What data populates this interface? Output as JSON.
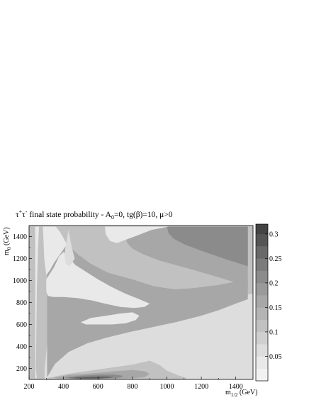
{
  "chart_data": {
    "type": "heatmap",
    "title": {
      "t1": "τ",
      "s1": "+",
      "t2": "τ",
      "s2": "-",
      "t3": " final state probability -  A",
      "s3": "0",
      "t4": "=0, tg(β)=10, μ>0"
    },
    "xlabel": {
      "main": "m",
      "sub": "1/2",
      "unit": " (GeV)"
    },
    "ylabel": {
      "main": "m",
      "sub": "0",
      "unit": "  (GeV)"
    },
    "xlim": [
      200,
      1500
    ],
    "ylim": [
      100,
      1500
    ],
    "x_ticks": [
      200,
      400,
      600,
      800,
      1000,
      1200,
      1400
    ],
    "y_ticks": [
      200,
      400,
      600,
      800,
      1000,
      1200,
      1400
    ],
    "colorbar": {
      "range": [
        0,
        0.32
      ],
      "levels": [
        0,
        0.025,
        0.05,
        0.075,
        0.1,
        0.125,
        0.15,
        0.175,
        0.2,
        0.225,
        0.25,
        0.275,
        0.3,
        0.32
      ],
      "tick_values": [
        0.05,
        0.1,
        0.15,
        0.2,
        0.25,
        0.3
      ],
      "tick_labels": [
        "0.05",
        "0.1",
        "0.15",
        "0.2",
        "0.25",
        "0.3"
      ],
      "colors": [
        "#f2f2f2",
        "#e9e9e9",
        "#dddddd",
        "#cfcfcf",
        "#c1c1c1",
        "#b4b4b4",
        "#a7a7a7",
        "#9a9a9a",
        "#8b8b8b",
        "#7b7b7b",
        "#696969",
        "#555555",
        "#444444"
      ]
    },
    "regions": [
      {
        "level": 0.11,
        "points": [
          [
            200,
            100
          ],
          [
            1500,
            100
          ],
          [
            1500,
            1500
          ],
          [
            200,
            1500
          ]
        ]
      },
      {
        "level": 0.06,
        "points": [
          [
            290,
            100
          ],
          [
            1500,
            100
          ],
          [
            1500,
            880
          ],
          [
            1000,
            770
          ],
          [
            800,
            700
          ],
          [
            620,
            620
          ],
          [
            480,
            560
          ],
          [
            390,
            520
          ],
          [
            340,
            490
          ],
          [
            305,
            420
          ],
          [
            290,
            200
          ]
        ]
      },
      {
        "level": 0.16,
        "points": [
          [
            270,
            1490
          ],
          [
            1470,
            1490
          ],
          [
            1470,
            945
          ],
          [
            1300,
            1030
          ],
          [
            1100,
            1120
          ],
          [
            960,
            1180
          ],
          [
            860,
            1240
          ],
          [
            800,
            1290
          ],
          [
            770,
            1340
          ],
          [
            760,
            1390
          ],
          [
            780,
            1490
          ]
        ]
      },
      {
        "level": 0.21,
        "points": [
          [
            600,
            1490
          ],
          [
            1470,
            1490
          ],
          [
            1470,
            1130
          ],
          [
            1350,
            1190
          ],
          [
            1200,
            1270
          ],
          [
            1100,
            1330
          ],
          [
            1040,
            1380
          ],
          [
            1010,
            1430
          ],
          [
            1000,
            1490
          ]
        ]
      },
      {
        "level": 0.16,
        "points": [
          [
            305,
            120
          ],
          [
            350,
            240
          ],
          [
            430,
            350
          ],
          [
            540,
            430
          ],
          [
            650,
            480
          ],
          [
            780,
            530
          ],
          [
            900,
            570
          ],
          [
            1050,
            620
          ],
          [
            1200,
            680
          ],
          [
            1300,
            730
          ],
          [
            1400,
            790
          ],
          [
            1470,
            830
          ],
          [
            1470,
            1010
          ],
          [
            1300,
            960
          ],
          [
            1150,
            930
          ],
          [
            1050,
            920
          ],
          [
            1000,
            930
          ],
          [
            920,
            950
          ],
          [
            800,
            1010
          ],
          [
            660,
            1070
          ],
          [
            560,
            1150
          ],
          [
            490,
            1230
          ],
          [
            440,
            1300
          ],
          [
            410,
            1320
          ],
          [
            380,
            1260
          ],
          [
            340,
            1170
          ],
          [
            305,
            1130
          ]
        ]
      },
      {
        "level": 0.21,
        "points": [
          [
            330,
            1000
          ],
          [
            300,
            900
          ],
          [
            350,
            870
          ],
          [
            440,
            880
          ],
          [
            520,
            900
          ],
          [
            560,
            930
          ],
          [
            480,
            990
          ],
          [
            430,
            1060
          ],
          [
            400,
            1070
          ],
          [
            370,
            1040
          ]
        ]
      },
      {
        "level": 0.03,
        "points": [
          [
            235,
            1490
          ],
          [
            258,
            1490
          ],
          [
            252,
            1300
          ],
          [
            245,
            900
          ],
          [
            242,
            500
          ],
          [
            240,
            200
          ],
          [
            245,
            110
          ],
          [
            237,
            110
          ],
          [
            236,
            400
          ],
          [
            236,
            900
          ],
          [
            236,
            1300
          ]
        ]
      },
      {
        "level": 0.03,
        "points": [
          [
            280,
            1490
          ],
          [
            355,
            1490
          ],
          [
            380,
            1440
          ],
          [
            420,
            1330
          ],
          [
            385,
            1250
          ],
          [
            345,
            1160
          ],
          [
            320,
            1090
          ],
          [
            300,
            1050
          ],
          [
            288,
            1200
          ],
          [
            283,
            1400
          ]
        ]
      },
      {
        "level": 0.03,
        "points": [
          [
            300,
            1010
          ],
          [
            320,
            1060
          ],
          [
            345,
            1120
          ],
          [
            375,
            1220
          ],
          [
            400,
            1260
          ],
          [
            430,
            1210
          ],
          [
            470,
            1140
          ],
          [
            540,
            1070
          ],
          [
            600,
            1010
          ],
          [
            680,
            940
          ],
          [
            760,
            880
          ],
          [
            840,
            830
          ],
          [
            900,
            790
          ],
          [
            870,
            760
          ],
          [
            810,
            750
          ],
          [
            730,
            760
          ],
          [
            640,
            790
          ],
          [
            560,
            820
          ],
          [
            480,
            840
          ],
          [
            400,
            850
          ],
          [
            340,
            850
          ],
          [
            310,
            860
          ],
          [
            300,
            900
          ]
        ]
      },
      {
        "level": 0.03,
        "points": [
          [
            640,
            1490
          ],
          [
            1010,
            1490
          ],
          [
            910,
            1460
          ],
          [
            830,
            1410
          ],
          [
            760,
            1370
          ],
          [
            710,
            1340
          ],
          [
            670,
            1360
          ],
          [
            645,
            1420
          ]
        ]
      },
      {
        "level": 0.06,
        "points": [
          [
            405,
            1220
          ],
          [
            410,
            1290
          ],
          [
            420,
            1380
          ],
          [
            428,
            1460
          ],
          [
            436,
            1400
          ],
          [
            450,
            1290
          ],
          [
            465,
            1200
          ],
          [
            445,
            1150
          ],
          [
            430,
            1130
          ],
          [
            415,
            1150
          ]
        ]
      },
      {
        "level": 0.03,
        "points": [
          [
            530,
            600
          ],
          [
            600,
            600
          ],
          [
            680,
            600
          ],
          [
            760,
            610
          ],
          [
            820,
            640
          ],
          [
            840,
            680
          ],
          [
            800,
            710
          ],
          [
            730,
            700
          ],
          [
            650,
            680
          ],
          [
            560,
            660
          ],
          [
            500,
            620
          ]
        ]
      },
      {
        "level": 0.11,
        "points": [
          [
            300,
            110
          ],
          [
            420,
            150
          ],
          [
            600,
            190
          ],
          [
            800,
            235
          ],
          [
            900,
            270
          ],
          [
            960,
            230
          ],
          [
            1000,
            180
          ],
          [
            1060,
            140
          ],
          [
            1120,
            110
          ],
          [
            1050,
            100
          ],
          [
            300,
            100
          ]
        ]
      },
      {
        "level": 0.16,
        "points": [
          [
            340,
            115
          ],
          [
            430,
            140
          ],
          [
            600,
            160
          ],
          [
            700,
            175
          ],
          [
            800,
            185
          ],
          [
            870,
            175
          ],
          [
            900,
            150
          ],
          [
            870,
            120
          ],
          [
            800,
            110
          ],
          [
            600,
            103
          ],
          [
            400,
            103
          ]
        ]
      },
      {
        "level": 0.21,
        "points": [
          [
            400,
            118
          ],
          [
            500,
            135
          ],
          [
            600,
            143
          ],
          [
            690,
            145
          ],
          [
            740,
            135
          ],
          [
            740,
            120
          ],
          [
            700,
            112
          ],
          [
            600,
            106
          ],
          [
            480,
            106
          ]
        ]
      },
      {
        "level": 0.26,
        "points": [
          [
            420,
            113
          ],
          [
            520,
            123
          ],
          [
            600,
            128
          ],
          [
            660,
            128
          ],
          [
            690,
            120
          ],
          [
            660,
            113
          ],
          [
            580,
            109
          ],
          [
            480,
            108
          ]
        ]
      },
      {
        "level": 0.285,
        "points": [
          [
            470,
            111
          ],
          [
            540,
            116
          ],
          [
            610,
            117
          ],
          [
            640,
            113
          ],
          [
            600,
            110
          ],
          [
            530,
            109
          ]
        ]
      }
    ]
  }
}
